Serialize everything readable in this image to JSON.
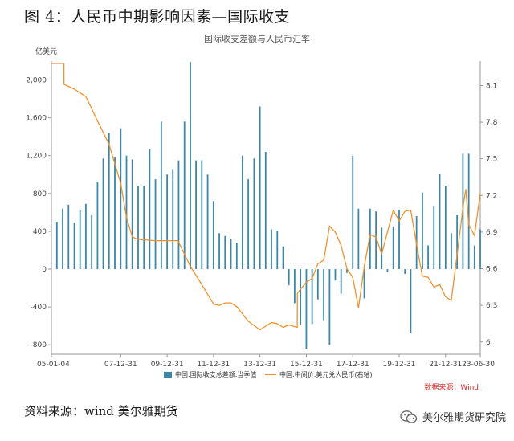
{
  "figure_title": "图 4：人民币中期影响因素—国际收支",
  "source_note": "资料来源：wind 美尔雅期货",
  "watermark_text": "美尔雅期货研究院",
  "watermark_icon": "wechat-icon",
  "colors": {
    "bar": "#3a87a8",
    "line": "#f0922b",
    "axis": "#999999",
    "source_red": "#e02020"
  },
  "chart_data": {
    "type": "bar",
    "title": "国际收支差额与人民币汇率",
    "data_source": "数据来源：Wind",
    "left_unit": "亿美元",
    "left_ylim": [
      -900,
      2200
    ],
    "left_ticks": [
      -800,
      -400,
      0,
      400,
      800,
      1200,
      1600,
      2000
    ],
    "left_tick_labels": [
      "-800",
      "-400",
      "0",
      "400",
      "800",
      "1,200",
      "1,600",
      "2,000"
    ],
    "right_ylim": [
      5.9,
      8.3
    ],
    "right_ticks": [
      6.0,
      6.3,
      6.6,
      6.9,
      7.2,
      7.5,
      7.8,
      8.1
    ],
    "right_tick_labels": [
      "6",
      "6.3",
      "6.6",
      "6.9",
      "7.2",
      "7.5",
      "7.8",
      "8.1"
    ],
    "x_range": [
      "2005-01-04",
      "2023-06-30"
    ],
    "x_ticks": [
      "2005-01-04",
      "2007-12-31",
      "2009-12-31",
      "2011-12-31",
      "2013-12-31",
      "2015-12-31",
      "2017-12-31",
      "2019-12-31",
      "2021-12-31",
      "2023-06-30"
    ],
    "x_tick_labels": [
      "05-01-04",
      "07-12-31",
      "09-12-31",
      "11-12-31",
      "13-12-31",
      "15-12-31",
      "17-12-31",
      "19-12-31",
      "21-12-31",
      "23-06-30"
    ],
    "legend": [
      {
        "name": "中国:国际收支总差额:当季值",
        "kind": "bar"
      },
      {
        "name": "中国:中间价:美元兑人民币(右轴)",
        "kind": "line"
      }
    ],
    "bars": {
      "name": "中国:国际收支总差额:当季值",
      "x": [
        "2005-03-31",
        "2005-06-30",
        "2005-09-30",
        "2005-12-31",
        "2006-03-31",
        "2006-06-30",
        "2006-09-30",
        "2006-12-31",
        "2007-03-31",
        "2007-06-30",
        "2007-09-30",
        "2007-12-31",
        "2008-03-31",
        "2008-06-30",
        "2008-09-30",
        "2008-12-31",
        "2009-03-31",
        "2009-06-30",
        "2009-09-30",
        "2009-12-31",
        "2010-03-31",
        "2010-06-30",
        "2010-09-30",
        "2010-12-31",
        "2011-03-31",
        "2011-06-30",
        "2011-09-30",
        "2011-12-31",
        "2012-03-31",
        "2012-06-30",
        "2012-09-30",
        "2012-12-31",
        "2013-03-31",
        "2013-06-30",
        "2013-09-30",
        "2013-12-31",
        "2014-03-31",
        "2014-06-30",
        "2014-09-30",
        "2014-12-31",
        "2015-03-31",
        "2015-06-30",
        "2015-09-30",
        "2015-12-31",
        "2016-03-31",
        "2016-06-30",
        "2016-09-30",
        "2016-12-31",
        "2017-03-31",
        "2017-06-30",
        "2017-09-30",
        "2017-12-31",
        "2018-03-31",
        "2018-06-30",
        "2018-09-30",
        "2018-12-31",
        "2019-03-31",
        "2019-06-30",
        "2019-09-30",
        "2019-12-31",
        "2020-03-31",
        "2020-06-30",
        "2020-09-30",
        "2020-12-31",
        "2021-03-31",
        "2021-06-30",
        "2021-09-30",
        "2021-12-31",
        "2022-03-31",
        "2022-06-30",
        "2022-09-30",
        "2022-12-31",
        "2023-03-31",
        "2023-06-30"
      ],
      "values": [
        500,
        640,
        680,
        490,
        620,
        690,
        570,
        920,
        1170,
        1440,
        1180,
        1490,
        1200,
        1160,
        880,
        880,
        1270,
        950,
        1560,
        1000,
        1050,
        1150,
        1560,
        2190,
        1150,
        1150,
        1000,
        720,
        380,
        350,
        320,
        280,
        1200,
        950,
        1170,
        1720,
        1240,
        420,
        400,
        240,
        -170,
        -360,
        -590,
        -840,
        -580,
        -320,
        -540,
        -800,
        -120,
        -260,
        -40,
        1200,
        640,
        -310,
        640,
        610,
        440,
        -30,
        450,
        630,
        -50,
        -680,
        560,
        810,
        250,
        670,
        1010,
        880,
        380,
        570,
        1220,
        1220,
        250,
        420
      ]
    },
    "line": {
      "name": "中国:中间价:美元兑人民币(右轴)",
      "x": [
        "2005-01-04",
        "2005-07-20",
        "2005-07-22",
        "2005-12-31",
        "2006-06-30",
        "2006-12-31",
        "2007-06-30",
        "2007-12-31",
        "2008-03-31",
        "2008-06-30",
        "2008-09-30",
        "2009-06-30",
        "2009-12-31",
        "2010-06-18",
        "2010-12-31",
        "2011-06-30",
        "2011-12-31",
        "2012-03-31",
        "2012-06-30",
        "2012-09-30",
        "2012-12-31",
        "2013-06-30",
        "2013-12-31",
        "2014-03-31",
        "2014-06-30",
        "2014-09-30",
        "2014-12-31",
        "2015-03-31",
        "2015-08-10",
        "2015-08-12",
        "2015-12-31",
        "2016-03-31",
        "2016-06-30",
        "2016-09-30",
        "2016-12-31",
        "2017-03-31",
        "2017-06-30",
        "2017-09-30",
        "2017-12-31",
        "2018-03-31",
        "2018-06-30",
        "2018-09-30",
        "2018-12-31",
        "2019-03-31",
        "2019-06-30",
        "2019-09-30",
        "2019-12-31",
        "2020-03-31",
        "2020-06-30",
        "2020-09-30",
        "2020-12-31",
        "2021-03-31",
        "2021-06-30",
        "2021-09-30",
        "2021-12-31",
        "2022-03-31",
        "2022-06-30",
        "2022-09-30",
        "2022-11-15",
        "2022-12-31",
        "2023-03-31",
        "2023-06-30"
      ],
      "values": [
        8.28,
        8.28,
        8.11,
        8.07,
        8.01,
        7.81,
        7.62,
        7.3,
        7.02,
        6.86,
        6.84,
        6.83,
        6.83,
        6.83,
        6.62,
        6.47,
        6.31,
        6.3,
        6.32,
        6.32,
        6.29,
        6.17,
        6.1,
        6.13,
        6.16,
        6.15,
        6.12,
        6.14,
        6.12,
        6.4,
        6.49,
        6.52,
        6.64,
        6.67,
        6.95,
        6.9,
        6.79,
        6.6,
        6.53,
        6.28,
        6.62,
        6.88,
        6.86,
        6.72,
        6.9,
        7.08,
        6.99,
        7.07,
        7.08,
        6.8,
        6.54,
        6.53,
        6.45,
        6.47,
        6.37,
        6.34,
        6.71,
        7.1,
        7.25,
        6.96,
        6.87,
        7.22
      ]
    }
  }
}
